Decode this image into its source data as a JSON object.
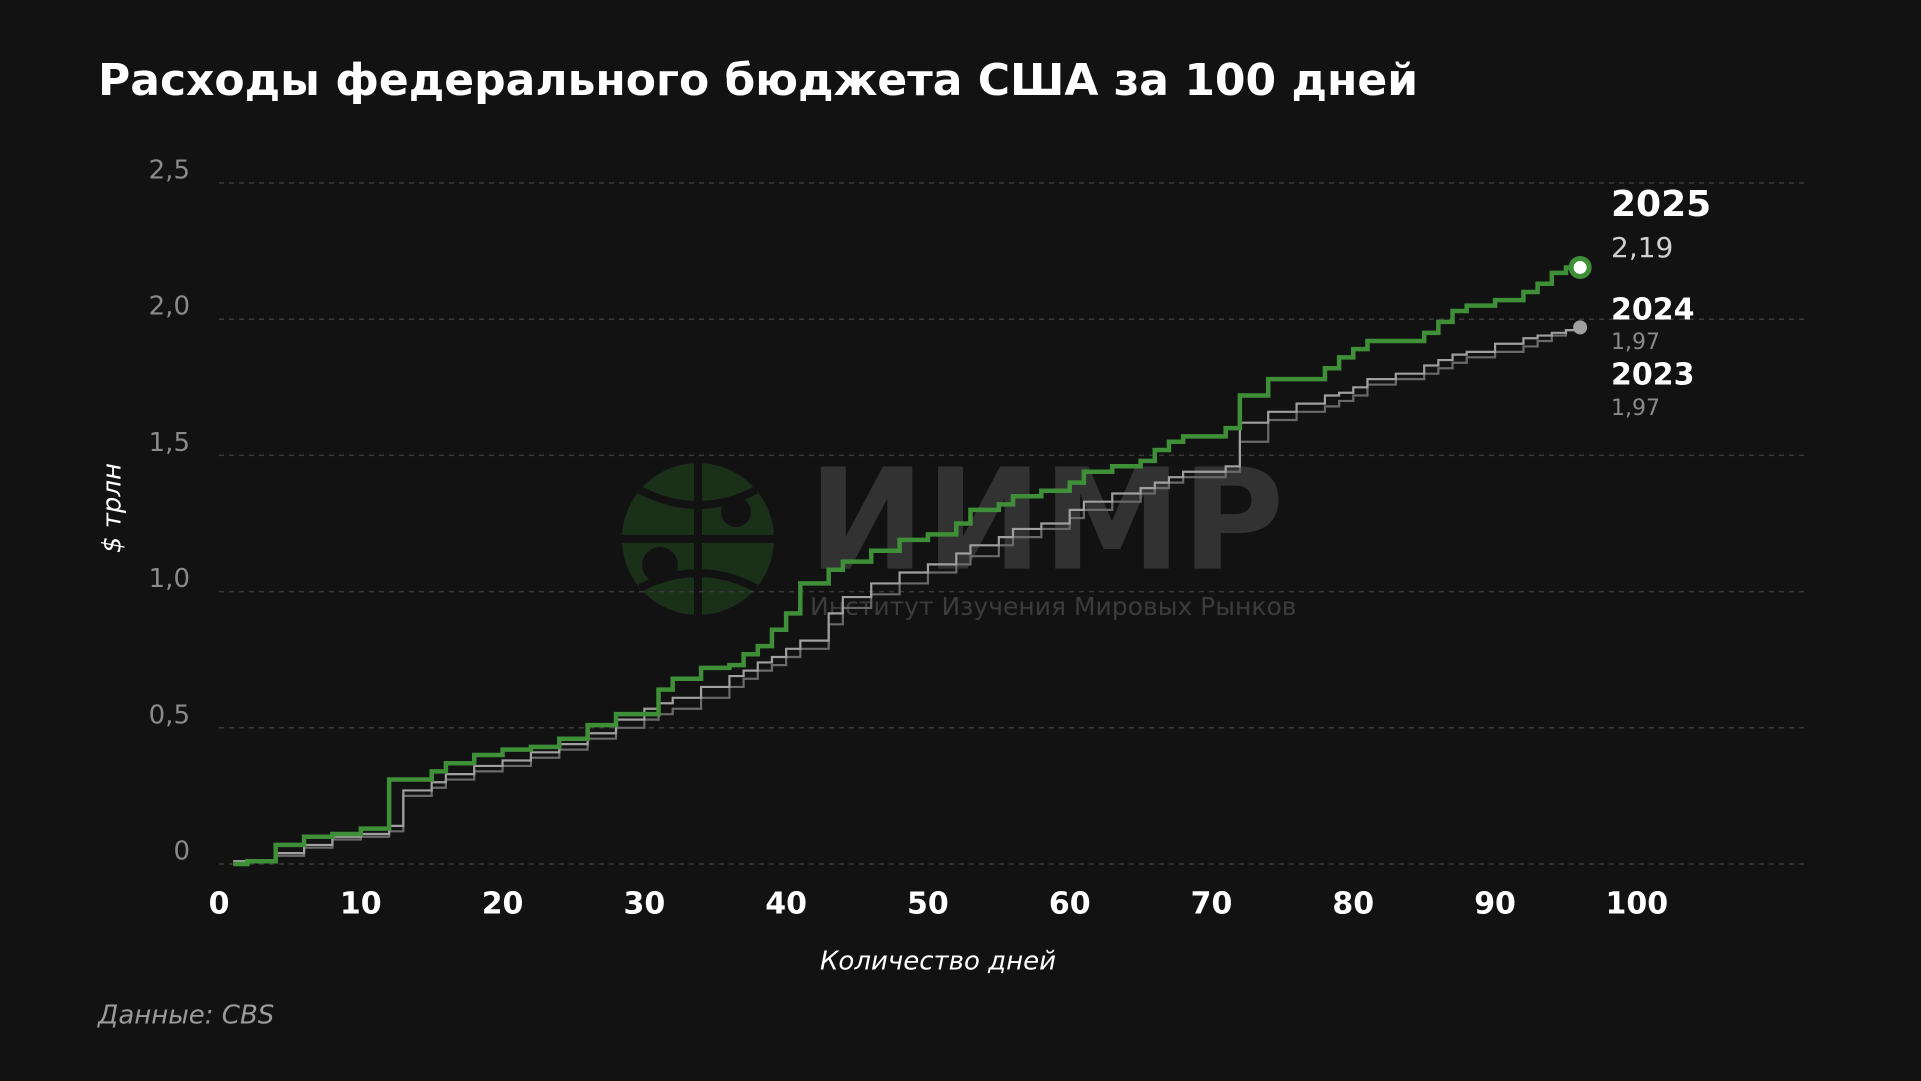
{
  "chart_data": {
    "type": "step-line",
    "title": "Расходы федерального бюджета США за 100 дней",
    "x_label": "Количество дней",
    "y_label": "$ трлн",
    "source": "Данные: CBS",
    "watermark": {
      "title": "ИИМР",
      "subtitle": "Институт Изучения Мировых Рынков"
    },
    "x": [
      1,
      2,
      4,
      6,
      8,
      10,
      12,
      13,
      15,
      16,
      18,
      20,
      22,
      24,
      26,
      28,
      30,
      31,
      32,
      34,
      36,
      37,
      38,
      39,
      40,
      41,
      43,
      44,
      46,
      48,
      50,
      52,
      53,
      55,
      56,
      58,
      60,
      61,
      63,
      65,
      66,
      67,
      68,
      71,
      72,
      74,
      76,
      78,
      79,
      80,
      81,
      83,
      85,
      86,
      87,
      88,
      90,
      92,
      93,
      94,
      95,
      96
    ],
    "series": [
      {
        "name": "2023",
        "color": "#6a6a6a",
        "end_marker": false,
        "values": [
          0.01,
          0.01,
          0.03,
          0.06,
          0.09,
          0.1,
          0.12,
          0.25,
          0.28,
          0.31,
          0.34,
          0.36,
          0.39,
          0.42,
          0.46,
          0.5,
          0.53,
          0.55,
          0.57,
          0.61,
          0.65,
          0.68,
          0.71,
          0.73,
          0.76,
          0.79,
          0.88,
          0.94,
          0.99,
          1.03,
          1.07,
          1.1,
          1.13,
          1.17,
          1.2,
          1.23,
          1.27,
          1.3,
          1.33,
          1.36,
          1.38,
          1.4,
          1.42,
          1.44,
          1.55,
          1.63,
          1.66,
          1.68,
          1.7,
          1.72,
          1.76,
          1.78,
          1.8,
          1.82,
          1.84,
          1.86,
          1.88,
          1.9,
          1.92,
          1.94,
          1.96,
          1.97
        ],
        "value_labels": [
          null,
          null,
          null,
          null,
          null,
          null,
          null,
          null,
          null,
          null,
          null,
          null,
          null,
          null,
          null,
          null,
          null,
          null,
          null,
          null,
          null,
          null,
          null,
          null,
          null,
          null,
          null,
          null,
          null,
          null,
          null,
          null,
          null,
          null,
          null,
          null,
          null,
          null,
          null,
          null,
          null,
          null,
          null,
          null,
          null,
          null,
          null,
          null,
          null,
          null,
          null,
          null,
          null,
          null,
          null,
          null,
          null,
          null,
          null,
          null,
          null,
          "1,97"
        ]
      },
      {
        "name": "2024",
        "color": "#a0a0a0",
        "end_marker": true,
        "values": [
          0.01,
          0.01,
          0.04,
          0.07,
          0.1,
          0.11,
          0.14,
          0.27,
          0.3,
          0.33,
          0.36,
          0.38,
          0.41,
          0.44,
          0.48,
          0.53,
          0.57,
          0.59,
          0.61,
          0.65,
          0.69,
          0.71,
          0.74,
          0.76,
          0.79,
          0.82,
          0.92,
          0.98,
          1.03,
          1.07,
          1.1,
          1.14,
          1.17,
          1.2,
          1.23,
          1.25,
          1.3,
          1.33,
          1.36,
          1.38,
          1.4,
          1.42,
          1.44,
          1.46,
          1.62,
          1.66,
          1.69,
          1.72,
          1.73,
          1.75,
          1.78,
          1.8,
          1.83,
          1.85,
          1.87,
          1.88,
          1.91,
          1.93,
          1.94,
          1.95,
          1.96,
          1.97
        ],
        "value_labels": [
          null,
          null,
          null,
          null,
          null,
          null,
          null,
          null,
          null,
          null,
          null,
          null,
          null,
          null,
          null,
          null,
          null,
          null,
          null,
          null,
          null,
          null,
          null,
          null,
          null,
          null,
          null,
          null,
          null,
          null,
          null,
          null,
          null,
          null,
          null,
          null,
          null,
          null,
          null,
          null,
          null,
          null,
          null,
          null,
          null,
          null,
          null,
          null,
          null,
          null,
          null,
          null,
          null,
          null,
          null,
          null,
          null,
          null,
          null,
          null,
          null,
          "1,97"
        ]
      },
      {
        "name": "2025",
        "color": "#3f8f38",
        "end_marker": true,
        "values": [
          0,
          0.01,
          0.07,
          0.1,
          0.11,
          0.13,
          0.31,
          0.31,
          0.34,
          0.37,
          0.4,
          0.42,
          0.43,
          0.46,
          0.51,
          0.55,
          0.55,
          0.64,
          0.68,
          0.72,
          0.73,
          0.77,
          0.8,
          0.86,
          0.92,
          1.03,
          1.08,
          1.11,
          1.15,
          1.19,
          1.21,
          1.25,
          1.3,
          1.32,
          1.35,
          1.37,
          1.4,
          1.44,
          1.46,
          1.48,
          1.52,
          1.55,
          1.57,
          1.6,
          1.72,
          1.78,
          1.78,
          1.82,
          1.86,
          1.89,
          1.92,
          1.92,
          1.95,
          1.99,
          2.03,
          2.05,
          2.07,
          2.1,
          2.13,
          2.17,
          2.19,
          2.19
        ],
        "value_labels": [
          null,
          null,
          null,
          null,
          null,
          null,
          null,
          null,
          null,
          null,
          null,
          null,
          null,
          null,
          null,
          null,
          null,
          null,
          null,
          null,
          null,
          null,
          null,
          null,
          null,
          null,
          null,
          null,
          null,
          null,
          null,
          null,
          null,
          null,
          null,
          null,
          null,
          null,
          null,
          null,
          null,
          null,
          null,
          null,
          null,
          null,
          null,
          null,
          null,
          null,
          null,
          null,
          null,
          null,
          null,
          null,
          null,
          null,
          null,
          null,
          null,
          "2,19"
        ]
      }
    ],
    "xlim": [
      0,
      112
    ],
    "xticks": [
      0,
      10,
      20,
      30,
      40,
      50,
      60,
      70,
      80,
      90,
      100
    ],
    "ylim": [
      0,
      2.5
    ],
    "yticks": [
      0,
      {
        "value": 0.5,
        "label": "0,5"
      },
      {
        "value": 1,
        "label": "1,0"
      },
      {
        "value": 1.5,
        "label": "1,5"
      },
      {
        "value": 2,
        "label": "2,0"
      },
      {
        "value": 2.5,
        "label": "2,5"
      }
    ],
    "grid": true
  }
}
